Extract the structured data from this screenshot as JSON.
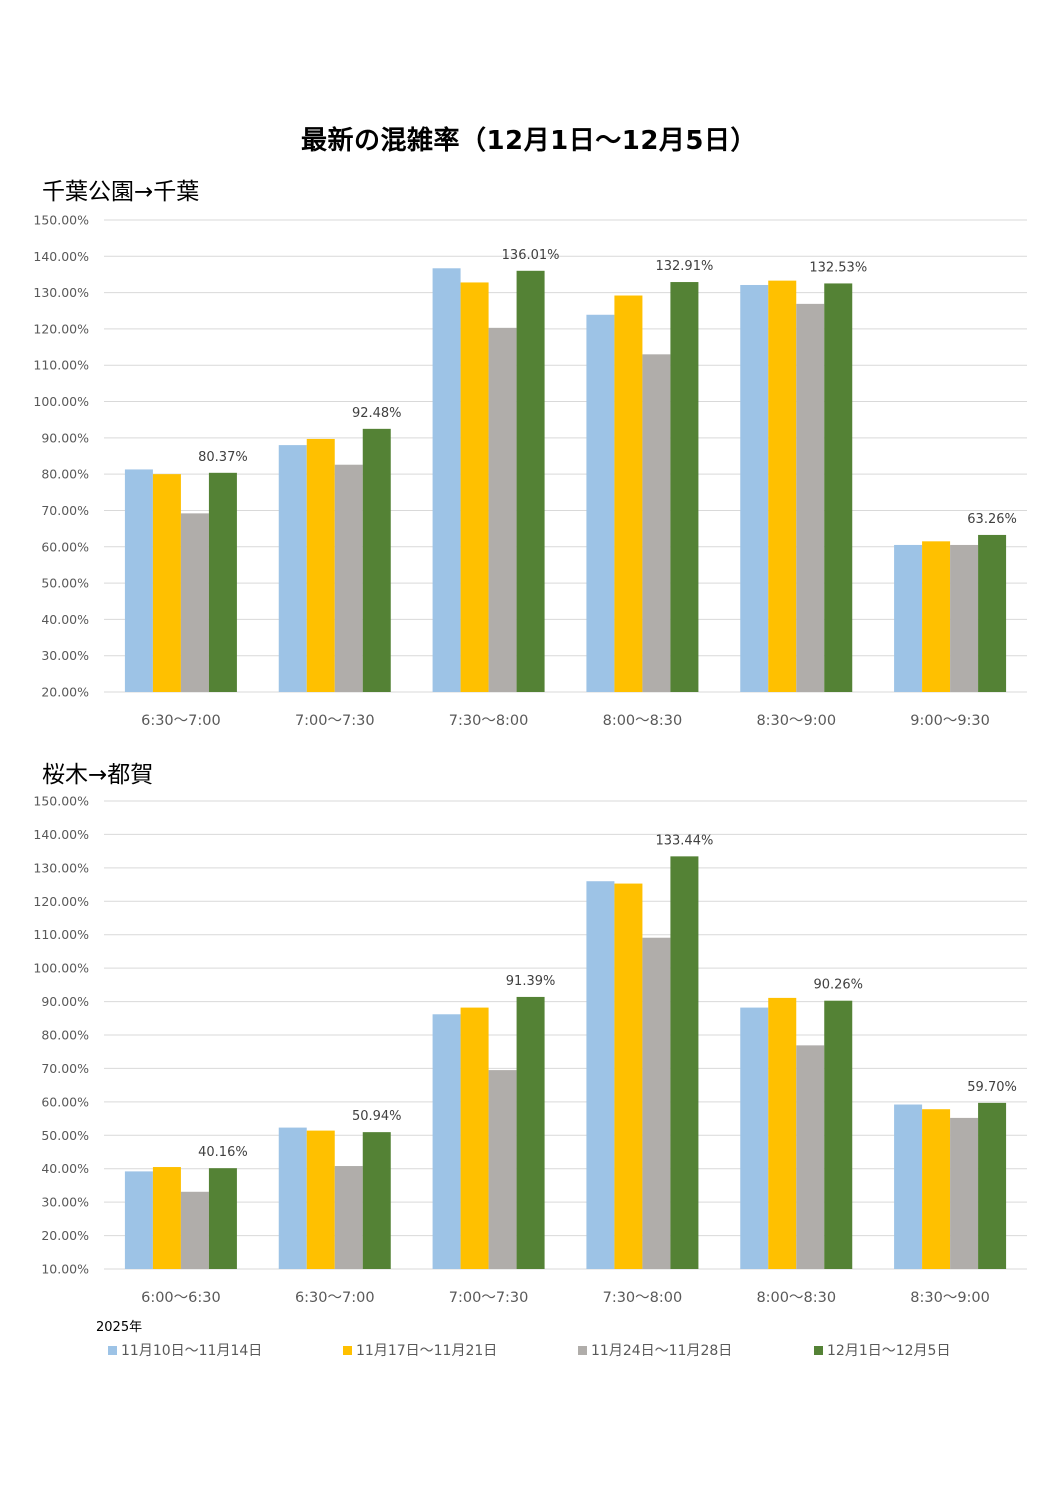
{
  "title": "最新の混雑率（12月1日～12月5日）",
  "year_label": "2025年",
  "legend": [
    {
      "label": "11月10日～11月14日",
      "color": "#9DC3E6"
    },
    {
      "label": "11月17日～11月21日",
      "color": "#FFC000"
    },
    {
      "label": "11月24日～11月28日",
      "color": "#B0ADAA"
    },
    {
      "label": "12月1日～12月5日",
      "color": "#548235"
    }
  ],
  "chart_data": [
    {
      "type": "bar",
      "title": "千葉公園→千葉",
      "categories": [
        "6:30～7:00",
        "7:00～7:30",
        "7:30～8:00",
        "8:00～8:30",
        "8:30～9:00",
        "9:00～9:30"
      ],
      "ylim": [
        20,
        150
      ],
      "ystep": 10,
      "yticks": [
        "20.00%",
        "30.00%",
        "40.00%",
        "50.00%",
        "60.00%",
        "70.00%",
        "80.00%",
        "90.00%",
        "100.00%",
        "110.00%",
        "120.00%",
        "130.00%",
        "140.00%",
        "150.00%"
      ],
      "series": [
        {
          "name": "11月10日～11月14日",
          "values": [
            81.3,
            88.0,
            136.7,
            123.9,
            132.1,
            60.5
          ]
        },
        {
          "name": "11月17日～11月21日",
          "values": [
            80.0,
            89.7,
            132.8,
            129.2,
            133.3,
            61.5
          ]
        },
        {
          "name": "11月24日～11月28日",
          "values": [
            69.2,
            82.6,
            120.3,
            113.0,
            126.9,
            60.5
          ]
        },
        {
          "name": "12月1日～12月5日",
          "values": [
            80.37,
            92.48,
            136.01,
            132.91,
            132.53,
            63.26
          ]
        }
      ],
      "data_labels": [
        "80.37%",
        "92.48%",
        "136.01%",
        "132.91%",
        "132.53%",
        "63.26%"
      ]
    },
    {
      "type": "bar",
      "title": "桜木→都賀",
      "categories": [
        "6:00～6:30",
        "6:30～7:00",
        "7:00～7:30",
        "7:30～8:00",
        "8:00～8:30",
        "8:30～9:00"
      ],
      "ylim": [
        10,
        150
      ],
      "ystep": 10,
      "yticks": [
        "10.00%",
        "20.00%",
        "30.00%",
        "40.00%",
        "50.00%",
        "60.00%",
        "70.00%",
        "80.00%",
        "90.00%",
        "100.00%",
        "110.00%",
        "120.00%",
        "130.00%",
        "140.00%",
        "150.00%"
      ],
      "series": [
        {
          "name": "11月10日～11月14日",
          "values": [
            39.2,
            52.3,
            86.2,
            126.0,
            88.2,
            59.2
          ]
        },
        {
          "name": "11月17日～11月21日",
          "values": [
            40.5,
            51.4,
            88.2,
            125.3,
            91.1,
            57.8
          ]
        },
        {
          "name": "11月24日～11月28日",
          "values": [
            33.1,
            40.8,
            69.5,
            109.1,
            76.9,
            55.2
          ]
        },
        {
          "name": "12月1日～12月5日",
          "values": [
            40.16,
            50.94,
            91.39,
            133.44,
            90.26,
            59.7
          ]
        }
      ],
      "data_labels": [
        "40.16%",
        "50.94%",
        "91.39%",
        "133.44%",
        "90.26%",
        "59.70%"
      ]
    }
  ]
}
